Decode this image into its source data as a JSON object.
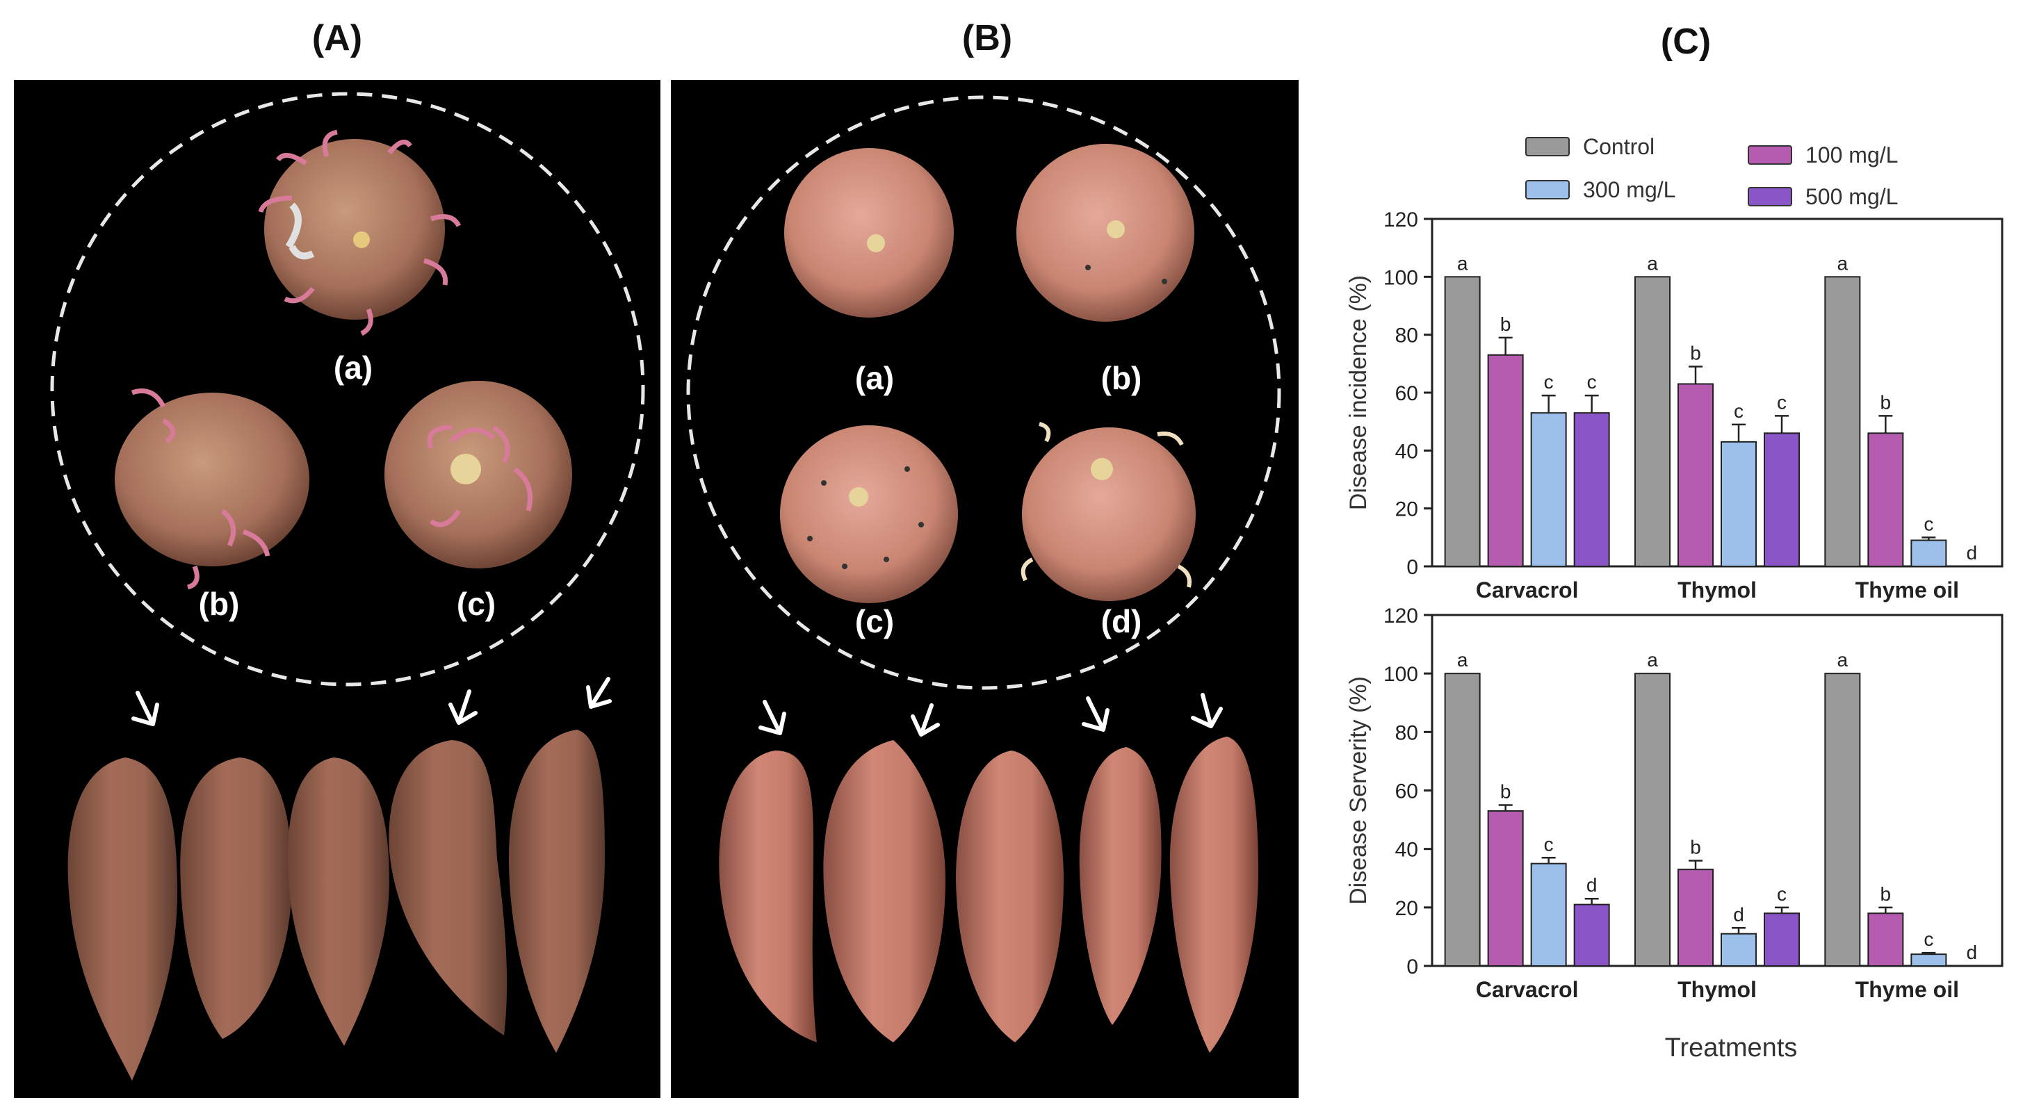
{
  "panels": {
    "a": {
      "label": "(A)",
      "tubers": [
        "(a)",
        "(b)",
        "(c)"
      ]
    },
    "b": {
      "label": "(B)",
      "tubers": [
        "(a)",
        "(b)",
        "(c)",
        "(d)"
      ]
    },
    "c": {
      "label": "(C)"
    }
  },
  "legend": [
    {
      "name": "Control",
      "color": "#9a9a9a"
    },
    {
      "name": "300 mg/L",
      "color": "#9dc0ea"
    },
    {
      "name": "100 mg/L",
      "color": "#b55bb0"
    },
    {
      "name": "500 mg/L",
      "color": "#8a55c7"
    }
  ],
  "chart_data": [
    {
      "type": "bar",
      "title": "",
      "ylabel": "Disease incidence (%)",
      "xlabel": "",
      "ylim": [
        0,
        120
      ],
      "yticks": [
        0,
        20,
        40,
        60,
        80,
        100,
        120
      ],
      "categories": [
        "Carvacrol",
        "Thymol",
        "Thyme oil"
      ],
      "series": [
        {
          "name": "Control",
          "values": [
            100,
            100,
            100
          ],
          "errors": [
            0,
            0,
            0
          ],
          "letters": [
            "a",
            "a",
            "a"
          ]
        },
        {
          "name": "100 mg/L",
          "values": [
            73,
            63,
            46
          ],
          "errors": [
            6,
            6,
            6
          ],
          "letters": [
            "b",
            "b",
            "b"
          ]
        },
        {
          "name": "300 mg/L",
          "values": [
            53,
            43,
            9
          ],
          "errors": [
            6,
            6,
            1
          ],
          "letters": [
            "c",
            "c",
            "c"
          ]
        },
        {
          "name": "500 mg/L",
          "values": [
            53,
            46,
            0
          ],
          "errors": [
            6,
            6,
            0
          ],
          "letters": [
            "c",
            "c",
            "d"
          ]
        }
      ]
    },
    {
      "type": "bar",
      "title": "",
      "ylabel": "Disease Serverity (%)",
      "xlabel": "Treatments",
      "ylim": [
        0,
        120
      ],
      "yticks": [
        0,
        20,
        40,
        60,
        80,
        100,
        120
      ],
      "categories": [
        "Carvacrol",
        "Thymol",
        "Thyme oil"
      ],
      "series": [
        {
          "name": "Control",
          "values": [
            100,
            100,
            100
          ],
          "errors": [
            0,
            0,
            0
          ],
          "letters": [
            "a",
            "a",
            "a"
          ]
        },
        {
          "name": "100 mg/L",
          "values": [
            53,
            33,
            18
          ],
          "errors": [
            2,
            3,
            2
          ],
          "letters": [
            "b",
            "b",
            "b"
          ]
        },
        {
          "name": "300 mg/L",
          "values": [
            35,
            11,
            4
          ],
          "errors": [
            2,
            2,
            0.5
          ],
          "letters": [
            "c",
            "d",
            "c"
          ]
        },
        {
          "name": "500 mg/L",
          "values": [
            21,
            18,
            0
          ],
          "errors": [
            2,
            2,
            0
          ],
          "letters": [
            "d",
            "c",
            "d"
          ]
        }
      ]
    }
  ]
}
